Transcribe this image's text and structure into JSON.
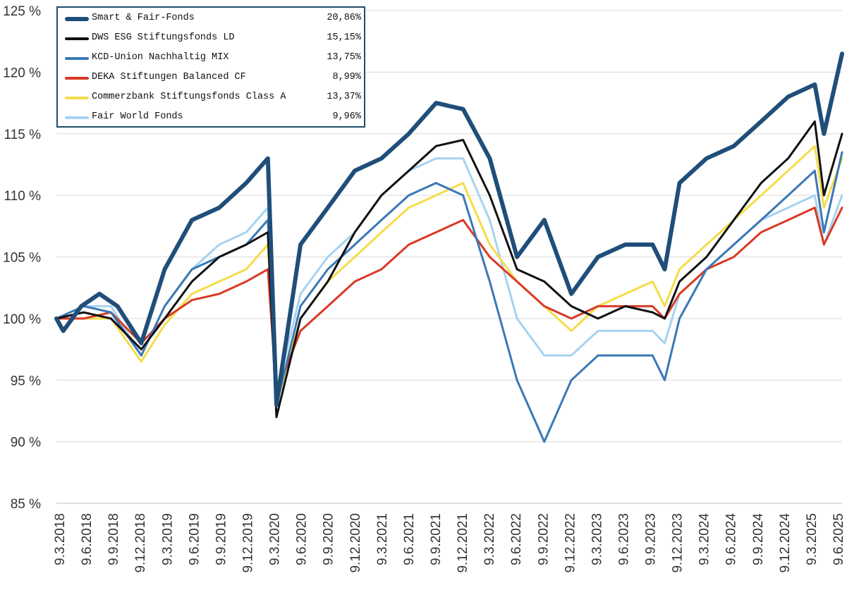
{
  "chart_data": {
    "type": "line",
    "title": "",
    "xlabel": "",
    "ylabel": "",
    "ylim": [
      85,
      125
    ],
    "yticks": [
      "85 %",
      "90 %",
      "95 %",
      "100 %",
      "105 %",
      "110 %",
      "115 %",
      "120 %",
      "125 %"
    ],
    "ytick_values": [
      85,
      90,
      95,
      100,
      105,
      110,
      115,
      120,
      125
    ],
    "x_start": "2018-03-09",
    "x_end": "2025-06-09",
    "xticks": [
      "9.3.2018",
      "9.6.2018",
      "9.9.2018",
      "9.12.2018",
      "9.3.2019",
      "9.6.2019",
      "9.9.2019",
      "9.12.2019",
      "9.3.2020",
      "9.6.2020",
      "9.9.2020",
      "9.12.2020",
      "9.3.2021",
      "9.6.2021",
      "9.9.2021",
      "9.12.2021",
      "9.3.2022",
      "9.6.2022",
      "9.9.2022",
      "9.12.2022",
      "9.3.2023",
      "9.6.2023",
      "9.9.2023",
      "9.12.2023",
      "9.3.2024",
      "9.6.2024",
      "9.9.2024",
      "9.12.2024",
      "9.3.2025",
      "9.6.2025"
    ],
    "grid": true,
    "legend_position": "top-left",
    "series": [
      {
        "name": "Smart & Fair-Fonds",
        "value_label": "20,86%",
        "color": "#1f4e79",
        "width": 6,
        "points": [
          [
            "2018-03-09",
            100
          ],
          [
            "2018-04-01",
            99
          ],
          [
            "2018-06-01",
            101
          ],
          [
            "2018-08-01",
            102
          ],
          [
            "2018-10-01",
            101
          ],
          [
            "2018-12-20",
            98
          ],
          [
            "2019-03-09",
            104
          ],
          [
            "2019-06-09",
            108
          ],
          [
            "2019-09-09",
            109
          ],
          [
            "2019-12-09",
            111
          ],
          [
            "2020-02-20",
            113
          ],
          [
            "2020-03-20",
            93
          ],
          [
            "2020-06-09",
            106
          ],
          [
            "2020-09-09",
            109
          ],
          [
            "2020-12-09",
            112
          ],
          [
            "2021-03-09",
            113
          ],
          [
            "2021-06-09",
            115
          ],
          [
            "2021-09-09",
            117.5
          ],
          [
            "2021-12-09",
            117
          ],
          [
            "2022-03-09",
            113
          ],
          [
            "2022-06-09",
            105
          ],
          [
            "2022-09-09",
            108
          ],
          [
            "2022-12-09",
            102
          ],
          [
            "2023-03-09",
            105
          ],
          [
            "2023-06-09",
            106
          ],
          [
            "2023-09-09",
            106
          ],
          [
            "2023-10-20",
            104
          ],
          [
            "2023-12-09",
            111
          ],
          [
            "2024-03-09",
            113
          ],
          [
            "2024-06-09",
            114
          ],
          [
            "2024-09-09",
            116
          ],
          [
            "2024-12-09",
            118
          ],
          [
            "2025-03-09",
            119
          ],
          [
            "2025-04-09",
            115
          ],
          [
            "2025-06-09",
            121.5
          ]
        ]
      },
      {
        "name": "DWS ESG Stiftungsfonds LD",
        "value_label": "15,15%",
        "color": "#111111",
        "width": 3,
        "points": [
          [
            "2018-03-09",
            100
          ],
          [
            "2018-06-09",
            100.5
          ],
          [
            "2018-09-09",
            100
          ],
          [
            "2018-12-20",
            97.5
          ],
          [
            "2019-03-09",
            100
          ],
          [
            "2019-06-09",
            103
          ],
          [
            "2019-09-09",
            105
          ],
          [
            "2019-12-09",
            106
          ],
          [
            "2020-02-20",
            107
          ],
          [
            "2020-03-20",
            92
          ],
          [
            "2020-06-09",
            100
          ],
          [
            "2020-09-09",
            103
          ],
          [
            "2020-12-09",
            107
          ],
          [
            "2021-03-09",
            110
          ],
          [
            "2021-06-09",
            112
          ],
          [
            "2021-09-09",
            114
          ],
          [
            "2021-12-09",
            114.5
          ],
          [
            "2022-03-09",
            110
          ],
          [
            "2022-06-09",
            104
          ],
          [
            "2022-09-09",
            103
          ],
          [
            "2022-12-09",
            101
          ],
          [
            "2023-03-09",
            100
          ],
          [
            "2023-06-09",
            101
          ],
          [
            "2023-09-09",
            100.5
          ],
          [
            "2023-10-20",
            100
          ],
          [
            "2023-12-09",
            103
          ],
          [
            "2024-03-09",
            105
          ],
          [
            "2024-06-09",
            108
          ],
          [
            "2024-09-09",
            111
          ],
          [
            "2024-12-09",
            113
          ],
          [
            "2025-03-09",
            116
          ],
          [
            "2025-04-09",
            110
          ],
          [
            "2025-06-09",
            115
          ]
        ]
      },
      {
        "name": "KCD-Union Nachhaltig MIX",
        "value_label": "13,75%",
        "color": "#3a78b5",
        "width": 3,
        "points": [
          [
            "2018-03-09",
            100
          ],
          [
            "2018-06-09",
            101
          ],
          [
            "2018-09-09",
            100.5
          ],
          [
            "2018-12-20",
            97
          ],
          [
            "2019-03-09",
            101
          ],
          [
            "2019-06-09",
            104
          ],
          [
            "2019-09-09",
            105
          ],
          [
            "2019-12-09",
            106
          ],
          [
            "2020-02-20",
            108
          ],
          [
            "2020-03-20",
            93
          ],
          [
            "2020-06-09",
            101
          ],
          [
            "2020-09-09",
            104
          ],
          [
            "2020-12-09",
            106
          ],
          [
            "2021-03-09",
            108
          ],
          [
            "2021-06-09",
            110
          ],
          [
            "2021-09-09",
            111
          ],
          [
            "2021-12-09",
            110
          ],
          [
            "2022-03-09",
            103
          ],
          [
            "2022-06-09",
            95
          ],
          [
            "2022-09-09",
            90
          ],
          [
            "2022-12-09",
            95
          ],
          [
            "2023-03-09",
            97
          ],
          [
            "2023-06-09",
            97
          ],
          [
            "2023-09-09",
            97
          ],
          [
            "2023-10-20",
            95
          ],
          [
            "2023-12-09",
            100
          ],
          [
            "2024-03-09",
            104
          ],
          [
            "2024-06-09",
            106
          ],
          [
            "2024-09-09",
            108
          ],
          [
            "2024-12-09",
            110
          ],
          [
            "2025-03-09",
            112
          ],
          [
            "2025-04-09",
            107
          ],
          [
            "2025-06-09",
            113.5
          ]
        ]
      },
      {
        "name": "DEKA Stiftungen Balanced CF",
        "value_label": "8,99%",
        "color": "#d93a26",
        "width": 3,
        "points": [
          [
            "2018-03-09",
            100
          ],
          [
            "2018-06-09",
            100
          ],
          [
            "2018-09-09",
            100.5
          ],
          [
            "2018-12-20",
            98
          ],
          [
            "2019-03-09",
            100
          ],
          [
            "2019-06-09",
            101.5
          ],
          [
            "2019-09-09",
            102
          ],
          [
            "2019-12-09",
            103
          ],
          [
            "2020-02-20",
            104
          ],
          [
            "2020-03-20",
            94
          ],
          [
            "2020-06-09",
            99
          ],
          [
            "2020-09-09",
            101
          ],
          [
            "2020-12-09",
            103
          ],
          [
            "2021-03-09",
            104
          ],
          [
            "2021-06-09",
            106
          ],
          [
            "2021-09-09",
            107
          ],
          [
            "2021-12-09",
            108
          ],
          [
            "2022-03-09",
            105
          ],
          [
            "2022-06-09",
            103
          ],
          [
            "2022-09-09",
            101
          ],
          [
            "2022-12-09",
            100
          ],
          [
            "2023-03-09",
            101
          ],
          [
            "2023-06-09",
            101
          ],
          [
            "2023-09-09",
            101
          ],
          [
            "2023-10-20",
            100
          ],
          [
            "2023-12-09",
            102
          ],
          [
            "2024-03-09",
            104
          ],
          [
            "2024-06-09",
            105
          ],
          [
            "2024-09-09",
            107
          ],
          [
            "2024-12-09",
            108
          ],
          [
            "2025-03-09",
            109
          ],
          [
            "2025-04-09",
            106
          ],
          [
            "2025-06-09",
            109
          ]
        ]
      },
      {
        "name": "Commerzbank Stiftungsfonds Class A",
        "value_label": "13,37%",
        "color": "#f5dc4a",
        "width": 3,
        "points": [
          [
            "2018-03-09",
            100
          ],
          [
            "2018-06-09",
            100
          ],
          [
            "2018-09-09",
            100
          ],
          [
            "2018-12-20",
            96.5
          ],
          [
            "2019-03-09",
            99.5
          ],
          [
            "2019-06-09",
            102
          ],
          [
            "2019-09-09",
            103
          ],
          [
            "2019-12-09",
            104
          ],
          [
            "2020-02-20",
            106
          ],
          [
            "2020-03-20",
            93
          ],
          [
            "2020-06-09",
            100
          ],
          [
            "2020-09-09",
            103
          ],
          [
            "2020-12-09",
            105
          ],
          [
            "2021-03-09",
            107
          ],
          [
            "2021-06-09",
            109
          ],
          [
            "2021-09-09",
            110
          ],
          [
            "2021-12-09",
            111
          ],
          [
            "2022-03-09",
            106
          ],
          [
            "2022-06-09",
            103
          ],
          [
            "2022-09-09",
            101
          ],
          [
            "2022-12-09",
            99
          ],
          [
            "2023-03-09",
            101
          ],
          [
            "2023-06-09",
            102
          ],
          [
            "2023-09-09",
            103
          ],
          [
            "2023-10-20",
            101
          ],
          [
            "2023-12-09",
            104
          ],
          [
            "2024-03-09",
            106
          ],
          [
            "2024-06-09",
            108
          ],
          [
            "2024-09-09",
            110
          ],
          [
            "2024-12-09",
            112
          ],
          [
            "2025-03-09",
            114
          ],
          [
            "2025-04-09",
            109
          ],
          [
            "2025-06-09",
            113
          ]
        ]
      },
      {
        "name": "Fair World Fonds",
        "value_label": "9,96%",
        "color": "#a6d3f0",
        "width": 3,
        "points": [
          [
            "2018-03-09",
            100
          ],
          [
            "2018-06-09",
            101
          ],
          [
            "2018-09-09",
            101
          ],
          [
            "2018-12-20",
            97
          ],
          [
            "2019-03-09",
            101
          ],
          [
            "2019-06-09",
            104
          ],
          [
            "2019-09-09",
            106
          ],
          [
            "2019-12-09",
            107
          ],
          [
            "2020-02-20",
            109
          ],
          [
            "2020-03-20",
            94
          ],
          [
            "2020-06-09",
            102
          ],
          [
            "2020-09-09",
            105
          ],
          [
            "2020-12-09",
            107
          ],
          [
            "2021-03-09",
            110
          ],
          [
            "2021-06-09",
            112
          ],
          [
            "2021-09-09",
            113
          ],
          [
            "2021-12-09",
            113
          ],
          [
            "2022-03-09",
            108
          ],
          [
            "2022-06-09",
            100
          ],
          [
            "2022-09-09",
            97
          ],
          [
            "2022-12-09",
            97
          ],
          [
            "2023-03-09",
            99
          ],
          [
            "2023-06-09",
            99
          ],
          [
            "2023-09-09",
            99
          ],
          [
            "2023-10-20",
            98
          ],
          [
            "2023-12-09",
            102
          ],
          [
            "2024-03-09",
            104
          ],
          [
            "2024-06-09",
            106
          ],
          [
            "2024-09-09",
            108
          ],
          [
            "2024-12-09",
            109
          ],
          [
            "2025-03-09",
            110
          ],
          [
            "2025-04-09",
            106
          ],
          [
            "2025-06-09",
            110
          ]
        ]
      }
    ]
  }
}
